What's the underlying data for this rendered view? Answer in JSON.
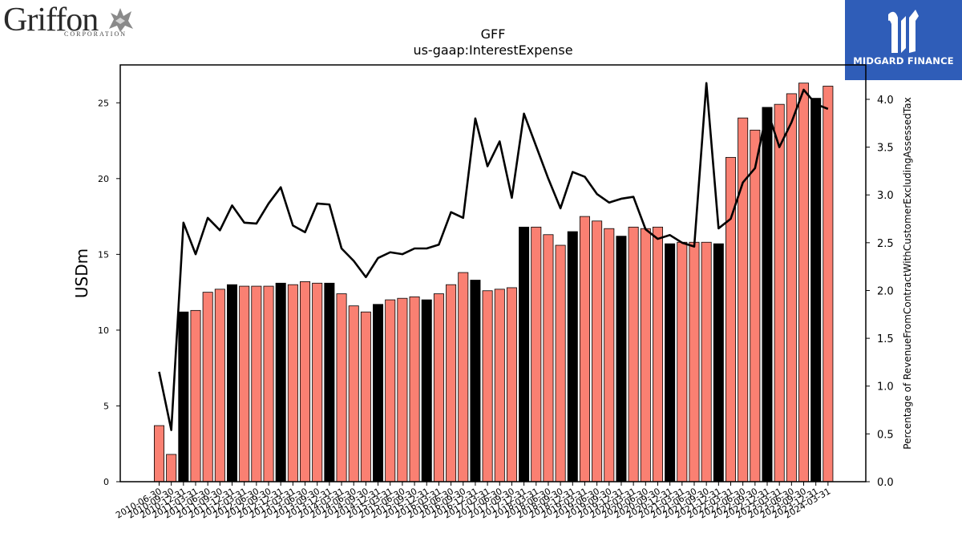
{
  "logos": {
    "left": {
      "name": "Griffon",
      "sub": "CORPORATION"
    },
    "right": {
      "name": "MIDGARD FINANCE"
    }
  },
  "colors": {
    "bar_default": "#fa8072",
    "bar_highlight": "#000000",
    "line": "#000000",
    "brand_blue": "#2f5db8"
  },
  "chart_data": {
    "type": "bar",
    "title": "GFF",
    "subtitle": "us-gaap:InterestExpense",
    "ylabel": "USDm",
    "y2label": "Percentage of RevenueFromContractWithCustomerExcludingAssessedTax",
    "ylim": [
      0,
      27.5
    ],
    "y2lim": [
      0,
      4.36
    ],
    "yticks": [
      0,
      5,
      10,
      15,
      20,
      25
    ],
    "y2ticks": [
      "0.0",
      "0.5",
      "1.0",
      "1.5",
      "2.0",
      "2.5",
      "3.0",
      "3.5",
      "4.0"
    ],
    "categories": [
      "2010-06-30",
      "2010-09-30",
      "2010-12-31",
      "2011-03-31",
      "2011-06-30",
      "2011-09-30",
      "2011-12-31",
      "2012-03-31",
      "2012-06-30",
      "2012-09-30",
      "2012-12-31",
      "2013-03-31",
      "2013-06-30",
      "2013-09-30",
      "2013-12-31",
      "2014-03-31",
      "2014-06-30",
      "2014-09-30",
      "2014-12-31",
      "2015-03-31",
      "2015-06-30",
      "2015-09-30",
      "2015-12-31",
      "2016-03-31",
      "2016-06-30",
      "2016-09-30",
      "2016-12-31",
      "2017-03-31",
      "2017-06-30",
      "2017-09-30",
      "2017-12-31",
      "2018-03-31",
      "2018-06-30",
      "2018-09-30",
      "2018-12-31",
      "2019-03-31",
      "2019-06-30",
      "2019-09-30",
      "2019-12-31",
      "2020-03-31",
      "2020-06-30",
      "2020-09-30",
      "2020-12-31",
      "2021-03-31",
      "2021-06-30",
      "2021-09-30",
      "2021-12-31",
      "2022-03-31",
      "2022-06-30",
      "2022-09-30",
      "2022-12-31",
      "2023-03-31",
      "2023-06-30",
      "2023-09-30",
      "2023-12-31",
      "2024-03-31"
    ],
    "series": [
      {
        "kind": "bar",
        "axis": "left",
        "values": [
          3.7,
          1.8,
          11.2,
          11.3,
          12.5,
          12.7,
          13.0,
          12.9,
          12.9,
          12.9,
          13.1,
          13.0,
          13.2,
          13.1,
          13.1,
          12.4,
          11.6,
          11.2,
          11.7,
          12.0,
          12.1,
          12.2,
          12.0,
          12.4,
          13.0,
          13.8,
          13.3,
          12.6,
          12.7,
          12.8,
          16.8,
          16.8,
          16.3,
          15.6,
          16.5,
          17.5,
          17.2,
          16.7,
          16.2,
          16.8,
          16.7,
          16.8,
          15.7,
          15.8,
          15.8,
          15.8,
          15.7,
          21.4,
          24.0,
          23.2,
          24.7,
          24.9,
          25.6,
          26.3,
          25.3,
          26.1
        ],
        "highlight": [
          false,
          false,
          true,
          false,
          false,
          false,
          true,
          false,
          false,
          false,
          true,
          false,
          false,
          false,
          true,
          false,
          false,
          false,
          true,
          false,
          false,
          false,
          true,
          false,
          false,
          false,
          true,
          false,
          false,
          false,
          true,
          false,
          false,
          false,
          true,
          false,
          false,
          false,
          true,
          false,
          false,
          false,
          true,
          false,
          false,
          false,
          true,
          false,
          false,
          false,
          true,
          false,
          false,
          false,
          true,
          false
        ]
      },
      {
        "kind": "line",
        "axis": "right",
        "values": [
          1.15,
          0.54,
          2.71,
          2.38,
          2.76,
          2.63,
          2.89,
          2.71,
          2.7,
          2.91,
          3.08,
          2.68,
          2.61,
          2.91,
          2.9,
          2.44,
          2.31,
          2.14,
          2.34,
          2.4,
          2.38,
          2.44,
          2.44,
          2.48,
          2.82,
          2.76,
          3.8,
          3.3,
          3.56,
          2.97,
          3.85,
          3.51,
          3.17,
          2.86,
          3.24,
          3.19,
          3.01,
          2.92,
          2.96,
          2.98,
          2.64,
          2.54,
          2.58,
          2.5,
          2.46,
          4.17,
          2.65,
          2.75,
          3.13,
          3.28,
          3.89,
          3.5,
          3.76,
          4.1,
          3.95,
          3.9
        ]
      }
    ],
    "grid": false,
    "legend": "none"
  }
}
